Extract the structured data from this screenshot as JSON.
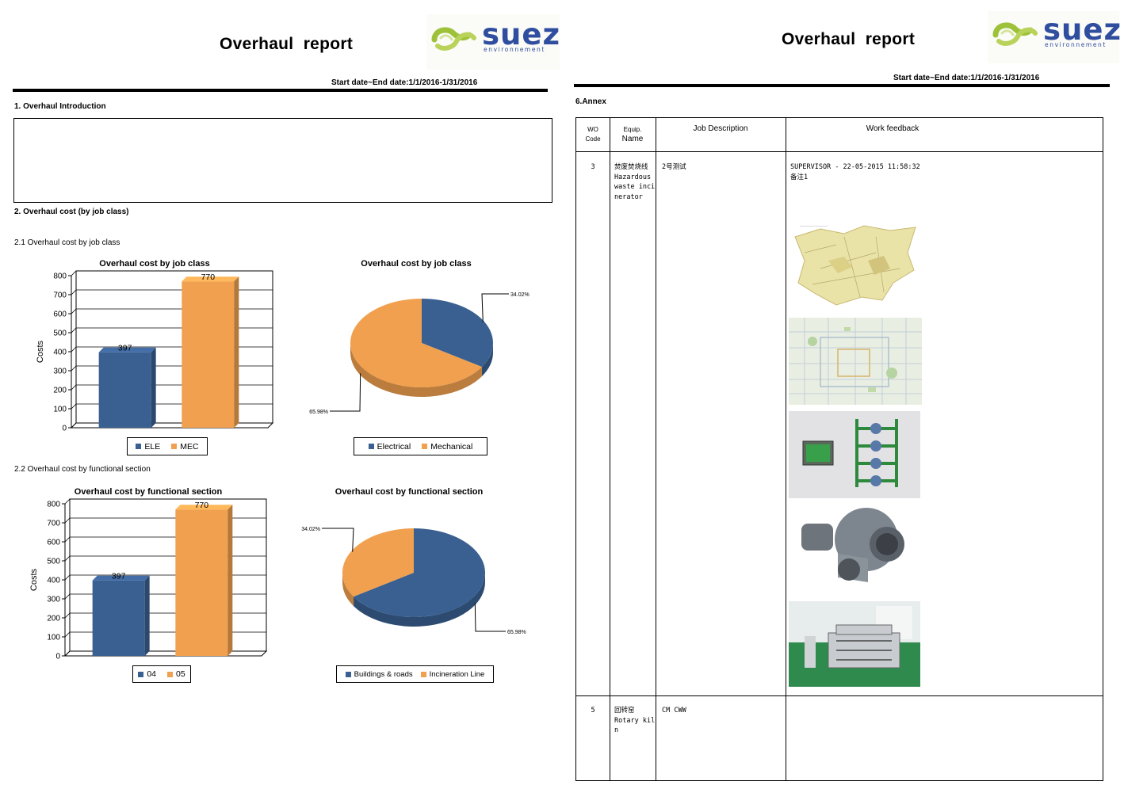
{
  "colors": {
    "blue": "#3a6091",
    "orange": "#f0a04e",
    "brand": "#2f4e9f",
    "brand_green": "#9dc23a"
  },
  "left_page": {
    "title": "Overhaul  report",
    "logo": {
      "word": "suez",
      "tagline": "environnement"
    },
    "date_range": "Start date~End date:1/1/2016-1/31/2016",
    "section1": "1.    Overhaul Introduction",
    "section2": "2. Overhaul cost (by job class)",
    "sub21": "2.1 Overhaul cost by job class",
    "sub22": "2.2 Overhaul cost by functional section"
  },
  "right_page": {
    "title": "Overhaul  report",
    "logo": {
      "word": "suez",
      "tagline": "environnement"
    },
    "date_range": "Start date~End date:1/1/2016-1/31/2016",
    "section_annex": "6.Annex",
    "table": {
      "headers": {
        "wo_code": [
          "WO",
          "Code"
        ],
        "equip_name": [
          "Equip.",
          "Name"
        ],
        "job_description": "Job Description",
        "work_feedback": "Work feedback"
      },
      "rows": [
        {
          "wo": "3",
          "equip": "焚废焚烧线\nHazardous waste incinerator",
          "job": "2号测试",
          "feedback": "SUPERVISOR - 22-05-2015 11:58:32\n备注1",
          "photos": [
            "map-photo",
            "city-map-photo",
            "pipe-assembly-photo",
            "blower-fan-photo",
            "factory-machine-photo"
          ]
        },
        {
          "wo": "5",
          "equip": "回转窑\nRotary kiln",
          "job": "CM CWW",
          "feedback": ""
        }
      ]
    }
  },
  "chart_data": [
    {
      "type": "bar",
      "title": "Overhaul cost by job class",
      "ylabel": "Costs",
      "categories": [
        "ELE",
        "MEC"
      ],
      "values": [
        397,
        770
      ],
      "ylim": [
        0,
        800
      ],
      "yticks": [
        0,
        100,
        200,
        300,
        400,
        500,
        600,
        700,
        800
      ],
      "value_labels": [
        "397",
        "770"
      ],
      "legend": [
        "ELE",
        "MEC"
      ],
      "grid": true
    },
    {
      "type": "pie",
      "title": "Overhaul cost by job class",
      "slices": [
        {
          "name": "Electrical",
          "value": 34.02,
          "label": "34.02%"
        },
        {
          "name": "Mechanical",
          "value": 65.98,
          "label": "65.98%"
        }
      ],
      "legend": [
        "Electrical",
        "Mechanical"
      ]
    },
    {
      "type": "bar",
      "title": "Overhaul cost by functional section",
      "ylabel": "Costs",
      "categories": [
        "04",
        "05"
      ],
      "values": [
        397,
        770
      ],
      "ylim": [
        0,
        800
      ],
      "yticks": [
        0,
        100,
        200,
        300,
        400,
        500,
        600,
        700,
        800
      ],
      "value_labels": [
        "397",
        "770"
      ],
      "legend": [
        "04",
        "05"
      ],
      "grid": true
    },
    {
      "type": "pie",
      "title": "Overhaul cost by functional section",
      "slices": [
        {
          "name": "Buildings & roads",
          "value": 65.98,
          "label": "65.98%"
        },
        {
          "name": "Incineration Line",
          "value": 34.02,
          "label": "34.02%"
        }
      ],
      "legend": [
        "Buildings & roads",
        "Incineration Line"
      ]
    }
  ]
}
